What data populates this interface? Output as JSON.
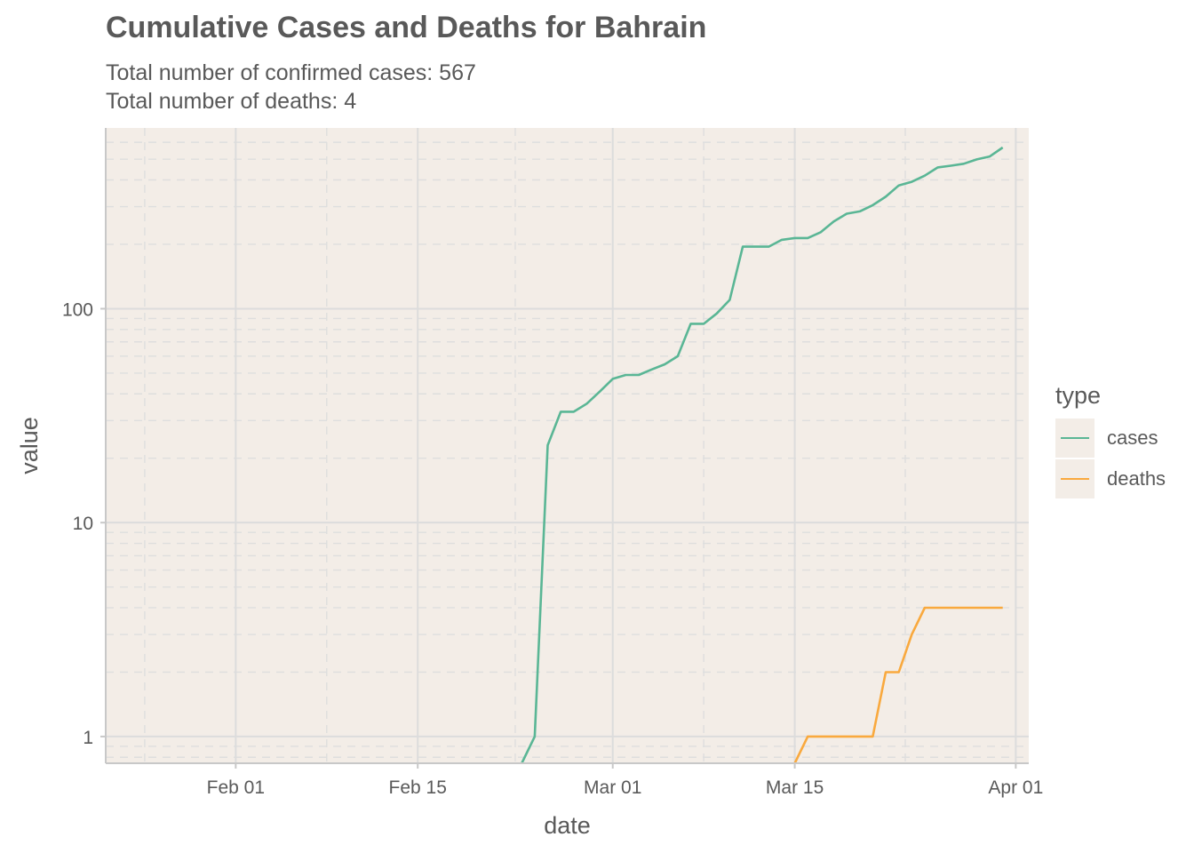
{
  "chart_data": {
    "type": "line",
    "title": "Cumulative Cases and Deaths for Bahrain",
    "subtitle_lines": [
      "Total number of confirmed cases: 567",
      "Total number of deaths: 4"
    ],
    "xlabel": "date",
    "ylabel": "value",
    "y_scale": "log10",
    "xlim": [
      "2020-01-22",
      "2020-04-02"
    ],
    "ylim": [
      0.75,
      700
    ],
    "x_ticks": [
      {
        "date": "2020-02-01",
        "label": "Feb 01"
      },
      {
        "date": "2020-02-15",
        "label": "Feb 15"
      },
      {
        "date": "2020-03-01",
        "label": "Mar 01"
      },
      {
        "date": "2020-03-15",
        "label": "Mar 15"
      },
      {
        "date": "2020-04-01",
        "label": "Apr 01"
      }
    ],
    "y_ticks": [
      {
        "value": 1,
        "label": "1"
      },
      {
        "value": 10,
        "label": "10"
      },
      {
        "value": 100,
        "label": "100"
      }
    ],
    "grid": true,
    "panel_background": "#f3ede7",
    "legend": {
      "title": "type",
      "position": "right"
    },
    "series": [
      {
        "name": "cases",
        "color": "#5ab695",
        "points": [
          [
            "2020-02-23",
            0.75
          ],
          [
            "2020-02-24",
            1
          ],
          [
            "2020-02-25",
            23
          ],
          [
            "2020-02-26",
            33
          ],
          [
            "2020-02-27",
            33
          ],
          [
            "2020-02-28",
            36
          ],
          [
            "2020-02-29",
            41
          ],
          [
            "2020-03-01",
            47
          ],
          [
            "2020-03-02",
            49
          ],
          [
            "2020-03-03",
            49
          ],
          [
            "2020-03-04",
            52
          ],
          [
            "2020-03-05",
            55
          ],
          [
            "2020-03-06",
            60
          ],
          [
            "2020-03-07",
            85
          ],
          [
            "2020-03-08",
            85
          ],
          [
            "2020-03-09",
            95
          ],
          [
            "2020-03-10",
            110
          ],
          [
            "2020-03-11",
            195
          ],
          [
            "2020-03-12",
            195
          ],
          [
            "2020-03-13",
            195
          ],
          [
            "2020-03-14",
            210
          ],
          [
            "2020-03-15",
            214
          ],
          [
            "2020-03-16",
            214
          ],
          [
            "2020-03-17",
            228
          ],
          [
            "2020-03-18",
            256
          ],
          [
            "2020-03-19",
            278
          ],
          [
            "2020-03-20",
            285
          ],
          [
            "2020-03-21",
            305
          ],
          [
            "2020-03-22",
            334
          ],
          [
            "2020-03-23",
            377
          ],
          [
            "2020-03-24",
            392
          ],
          [
            "2020-03-25",
            419
          ],
          [
            "2020-03-26",
            458
          ],
          [
            "2020-03-27",
            466
          ],
          [
            "2020-03-28",
            476
          ],
          [
            "2020-03-29",
            499
          ],
          [
            "2020-03-30",
            515
          ],
          [
            "2020-03-31",
            567
          ]
        ]
      },
      {
        "name": "deaths",
        "color": "#f9a93e",
        "points": [
          [
            "2020-03-15",
            0.75
          ],
          [
            "2020-03-16",
            1
          ],
          [
            "2020-03-17",
            1
          ],
          [
            "2020-03-18",
            1
          ],
          [
            "2020-03-19",
            1
          ],
          [
            "2020-03-20",
            1
          ],
          [
            "2020-03-21",
            1
          ],
          [
            "2020-03-22",
            2
          ],
          [
            "2020-03-23",
            2
          ],
          [
            "2020-03-24",
            3
          ],
          [
            "2020-03-25",
            4
          ],
          [
            "2020-03-26",
            4
          ],
          [
            "2020-03-27",
            4
          ],
          [
            "2020-03-28",
            4
          ],
          [
            "2020-03-29",
            4
          ],
          [
            "2020-03-30",
            4
          ],
          [
            "2020-03-31",
            4
          ]
        ]
      }
    ]
  }
}
